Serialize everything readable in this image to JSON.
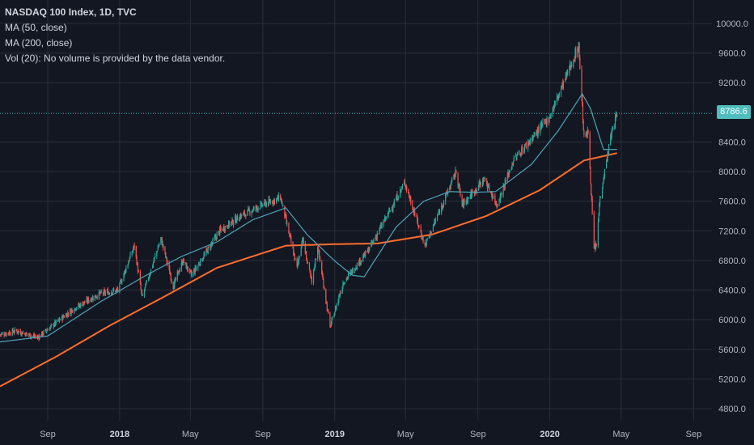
{
  "legend": {
    "title": "NASDAQ 100 Index, 1D, TVC",
    "ma50": "MA (50, close)",
    "ma200": "MA (200, close)",
    "vol": "Vol (20): No volume is provided by the data vendor."
  },
  "last_price": "8786.6",
  "colors": {
    "background": "#131722",
    "grid": "#2a2e39",
    "up": "#26a69a",
    "down": "#ef5350",
    "ma50": "#4fa3b6",
    "ma200": "#ff6d2e",
    "last_price_line": "#4fbdbd"
  },
  "chart_data": {
    "type": "candlestick",
    "ylim": [
      4600,
      10300
    ],
    "y_ticks": [
      "4800.0",
      "5200.0",
      "5600.0",
      "6000.0",
      "6400.0",
      "6800.0",
      "7200.0",
      "7600.0",
      "8000.0",
      "8400.0",
      "9200.0",
      "9600.0",
      "10000.0"
    ],
    "x_ticks": [
      {
        "label": "Sep",
        "bold": false
      },
      {
        "label": "2018",
        "bold": true
      },
      {
        "label": "May",
        "bold": false
      },
      {
        "label": "Sep",
        "bold": false
      },
      {
        "label": "2019",
        "bold": true
      },
      {
        "label": "May",
        "bold": false
      },
      {
        "label": "Sep",
        "bold": false
      },
      {
        "label": "2020",
        "bold": true
      },
      {
        "label": "May",
        "bold": false
      },
      {
        "label": "Sep",
        "bold": false
      }
    ],
    "last_price": 8786.6,
    "close_keypoints": [
      [
        "2017-06-12",
        5800
      ],
      [
        "2017-07-10",
        5850
      ],
      [
        "2017-08-15",
        5760
      ],
      [
        "2017-09-15",
        5960
      ],
      [
        "2017-10-15",
        6150
      ],
      [
        "2017-11-28",
        6350
      ],
      [
        "2017-12-29",
        6400
      ],
      [
        "2018-01-26",
        7000
      ],
      [
        "2018-02-08",
        6300
      ],
      [
        "2018-03-12",
        7100
      ],
      [
        "2018-04-02",
        6450
      ],
      [
        "2018-04-18",
        6800
      ],
      [
        "2018-05-03",
        6600
      ],
      [
        "2018-06-20",
        7200
      ],
      [
        "2018-07-25",
        7400
      ],
      [
        "2018-08-31",
        7550
      ],
      [
        "2018-10-01",
        7650
      ],
      [
        "2018-10-29",
        6700
      ],
      [
        "2018-11-07",
        7100
      ],
      [
        "2018-11-23",
        6500
      ],
      [
        "2018-12-03",
        7000
      ],
      [
        "2018-12-24",
        5900
      ],
      [
        "2019-01-15",
        6500
      ],
      [
        "2019-02-28",
        6950
      ],
      [
        "2019-04-30",
        7850
      ],
      [
        "2019-06-03",
        7000
      ],
      [
        "2019-07-26",
        8000
      ],
      [
        "2019-08-05",
        7550
      ],
      [
        "2019-09-12",
        7900
      ],
      [
        "2019-10-03",
        7550
      ],
      [
        "2019-10-31",
        8150
      ],
      [
        "2019-12-31",
        8730
      ],
      [
        "2020-02-19",
        9700
      ],
      [
        "2020-02-28",
        8450
      ],
      [
        "2020-03-06",
        8530
      ],
      [
        "2020-03-16",
        6950
      ],
      [
        "2020-03-20",
        7000
      ],
      [
        "2020-03-26",
        7650
      ],
      [
        "2020-04-14",
        8500
      ],
      [
        "2020-04-24",
        8786.6
      ]
    ],
    "ma200_keypoints": [
      [
        "2017-06-12",
        5100
      ],
      [
        "2017-09-15",
        5500
      ],
      [
        "2017-12-15",
        5920
      ],
      [
        "2018-03-15",
        6300
      ],
      [
        "2018-06-15",
        6700
      ],
      [
        "2018-10-10",
        7000
      ],
      [
        "2018-12-31",
        7020
      ],
      [
        "2019-03-15",
        7030
      ],
      [
        "2019-06-15",
        7150
      ],
      [
        "2019-09-15",
        7400
      ],
      [
        "2019-12-15",
        7750
      ],
      [
        "2020-02-28",
        8150
      ],
      [
        "2020-04-24",
        8250
      ]
    ],
    "ma50_keypoints": [
      [
        "2017-06-12",
        5700
      ],
      [
        "2017-09-01",
        5780
      ],
      [
        "2017-12-01",
        6250
      ],
      [
        "2018-02-15",
        6600
      ],
      [
        "2018-04-15",
        6850
      ],
      [
        "2018-06-15",
        7050
      ],
      [
        "2018-08-15",
        7350
      ],
      [
        "2018-10-10",
        7510
      ],
      [
        "2018-11-15",
        7150
      ],
      [
        "2018-12-31",
        6800
      ],
      [
        "2019-01-31",
        6600
      ],
      [
        "2019-02-20",
        6580
      ],
      [
        "2019-04-15",
        7250
      ],
      [
        "2019-06-01",
        7600
      ],
      [
        "2019-07-15",
        7730
      ],
      [
        "2019-08-25",
        7720
      ],
      [
        "2019-10-01",
        7730
      ],
      [
        "2019-12-01",
        8100
      ],
      [
        "2020-01-15",
        8550
      ],
      [
        "2020-02-25",
        9050
      ],
      [
        "2020-03-10",
        8850
      ],
      [
        "2020-04-01",
        8300
      ],
      [
        "2020-04-24",
        8300
      ]
    ],
    "x_range": [
      "2017-06-12",
      "2020-10-02"
    ]
  }
}
